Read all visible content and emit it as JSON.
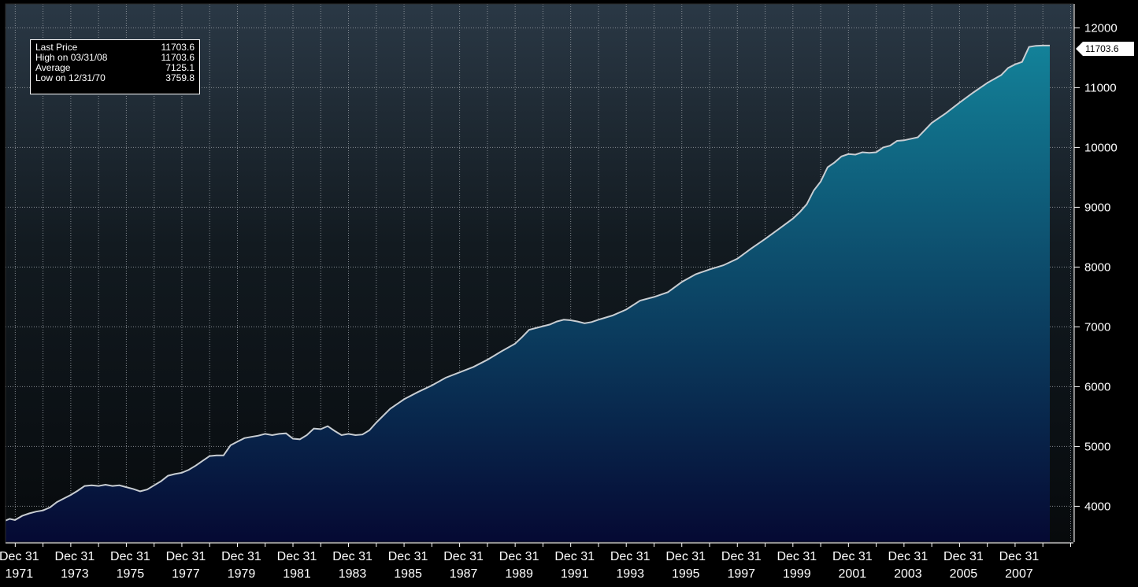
{
  "chart_data": {
    "type": "area",
    "title": "",
    "xlabel": "",
    "ylabel": "",
    "ylim": [
      3400,
      12400
    ],
    "xlim": [
      1970.65,
      2009.1
    ],
    "grid": true,
    "yticks": [
      4000,
      5000,
      6000,
      7000,
      8000,
      9000,
      10000,
      11000,
      12000
    ],
    "ytick_labels": [
      "4000",
      "5000",
      "6000",
      "7000",
      "8000",
      "9000",
      "10000",
      "11000",
      "12000"
    ],
    "xticks": [
      {
        "line1": "Dec 31",
        "line2": "1971",
        "x": 1971.0
      },
      {
        "line1": "Dec 31",
        "line2": "1973",
        "x": 1973.0
      },
      {
        "line1": "Dec 31",
        "line2": "1975",
        "x": 1975.0
      },
      {
        "line1": "Dec 31",
        "line2": "1977",
        "x": 1977.0
      },
      {
        "line1": "Dec 31",
        "line2": "1979",
        "x": 1979.0
      },
      {
        "line1": "Dec 31",
        "line2": "1981",
        "x": 1981.0
      },
      {
        "line1": "Dec 31",
        "line2": "1983",
        "x": 1983.0
      },
      {
        "line1": "Dec 31",
        "line2": "1985",
        "x": 1985.0
      },
      {
        "line1": "Dec 31",
        "line2": "1987",
        "x": 1987.0
      },
      {
        "line1": "Dec 31",
        "line2": "1989",
        "x": 1989.0
      },
      {
        "line1": "Dec 31",
        "line2": "1991",
        "x": 1991.0
      },
      {
        "line1": "Dec 31",
        "line2": "1993",
        "x": 1993.0
      },
      {
        "line1": "Dec 31",
        "line2": "1995",
        "x": 1995.0
      },
      {
        "line1": "Dec 31",
        "line2": "1997",
        "x": 1997.0
      },
      {
        "line1": "Dec 31",
        "line2": "1999",
        "x": 1999.0
      },
      {
        "line1": "Dec 31",
        "line2": "2001",
        "x": 2001.0
      },
      {
        "line1": "Dec 31",
        "line2": "2003",
        "x": 2003.0
      },
      {
        "line1": "Dec 31",
        "line2": "2005",
        "x": 2005.0
      },
      {
        "line1": "Dec 31",
        "line2": "2007",
        "x": 2007.0
      }
    ],
    "series": [
      {
        "x": [
          1970.65,
          1970.8,
          1970.99,
          1971.25,
          1971.5,
          1971.75,
          1972.0,
          1972.25,
          1972.5,
          1972.75,
          1973.0,
          1973.25,
          1973.5,
          1973.75,
          1974.0,
          1974.25,
          1974.5,
          1974.75,
          1975.0,
          1975.25,
          1975.5,
          1975.75,
          1976.0,
          1976.25,
          1976.5,
          1976.75,
          1977.0,
          1977.25,
          1977.5,
          1977.75,
          1978.0,
          1978.25,
          1978.5,
          1978.75,
          1979.0,
          1979.25,
          1979.5,
          1979.75,
          1980.0,
          1980.25,
          1980.5,
          1980.75,
          1981.0,
          1981.25,
          1981.5,
          1981.75,
          1982.0,
          1982.25,
          1982.5,
          1982.75,
          1983.0,
          1983.25,
          1983.5,
          1983.75,
          1984.0,
          1984.5,
          1985.0,
          1985.5,
          1986.0,
          1986.5,
          1987.0,
          1987.5,
          1988.0,
          1988.5,
          1989.0,
          1989.25,
          1989.5,
          1989.75,
          1990.0,
          1990.25,
          1990.5,
          1990.75,
          1991.0,
          1991.25,
          1991.5,
          1991.75,
          1992.0,
          1992.5,
          1993.0,
          1993.5,
          1994.0,
          1994.5,
          1995.0,
          1995.5,
          1996.0,
          1996.5,
          1997.0,
          1997.5,
          1998.0,
          1998.5,
          1999.0,
          1999.25,
          1999.5,
          1999.75,
          2000.0,
          2000.25,
          2000.5,
          2000.75,
          2001.0,
          2001.25,
          2001.5,
          2001.75,
          2002.0,
          2002.25,
          2002.5,
          2002.75,
          2003.0,
          2003.5,
          2004.0,
          2004.5,
          2005.0,
          2005.5,
          2006.0,
          2006.5,
          2006.75,
          2007.0,
          2007.25,
          2007.5,
          2007.75,
          2008.0,
          2008.25
        ],
        "values": [
          3760,
          3790,
          3770,
          3840,
          3880,
          3910,
          3930,
          3980,
          4070,
          4130,
          4190,
          4260,
          4340,
          4350,
          4340,
          4360,
          4340,
          4350,
          4320,
          4290,
          4250,
          4280,
          4350,
          4420,
          4510,
          4540,
          4560,
          4610,
          4680,
          4760,
          4840,
          4850,
          4850,
          5020,
          5080,
          5140,
          5160,
          5180,
          5210,
          5190,
          5210,
          5220,
          5130,
          5120,
          5190,
          5300,
          5290,
          5340,
          5260,
          5190,
          5210,
          5190,
          5200,
          5270,
          5400,
          5630,
          5790,
          5910,
          6020,
          6150,
          6240,
          6330,
          6450,
          6590,
          6720,
          6830,
          6950,
          6980,
          7010,
          7040,
          7090,
          7120,
          7110,
          7090,
          7060,
          7080,
          7120,
          7190,
          7290,
          7440,
          7500,
          7580,
          7750,
          7880,
          7960,
          8030,
          8140,
          8310,
          8470,
          8640,
          8810,
          8920,
          9050,
          9280,
          9430,
          9670,
          9750,
          9850,
          9890,
          9880,
          9920,
          9910,
          9920,
          10000,
          10030,
          10110,
          10120,
          10170,
          10410,
          10570,
          10750,
          10920,
          11080,
          11210,
          11330,
          11390,
          11430,
          11680,
          11700,
          11703.6,
          11703.6
        ]
      }
    ],
    "last_price_label": "11703.6"
  },
  "legend": {
    "rows": [
      {
        "label": "Last Price",
        "value": "11703.6"
      },
      {
        "label": "High on 03/31/08",
        "value": "11703.6"
      },
      {
        "label": "Average",
        "value": "7125.1"
      },
      {
        "label": "Low on 12/31/70",
        "value": "3759.8"
      }
    ]
  },
  "colors": {
    "background": "#000000",
    "grid": "#9aa0a6",
    "line": "#c8cdd2",
    "area_top": "#13839a",
    "area_bottom": "#050933",
    "axis_text": "#ffffff",
    "tag_bg": "#ffffff"
  }
}
